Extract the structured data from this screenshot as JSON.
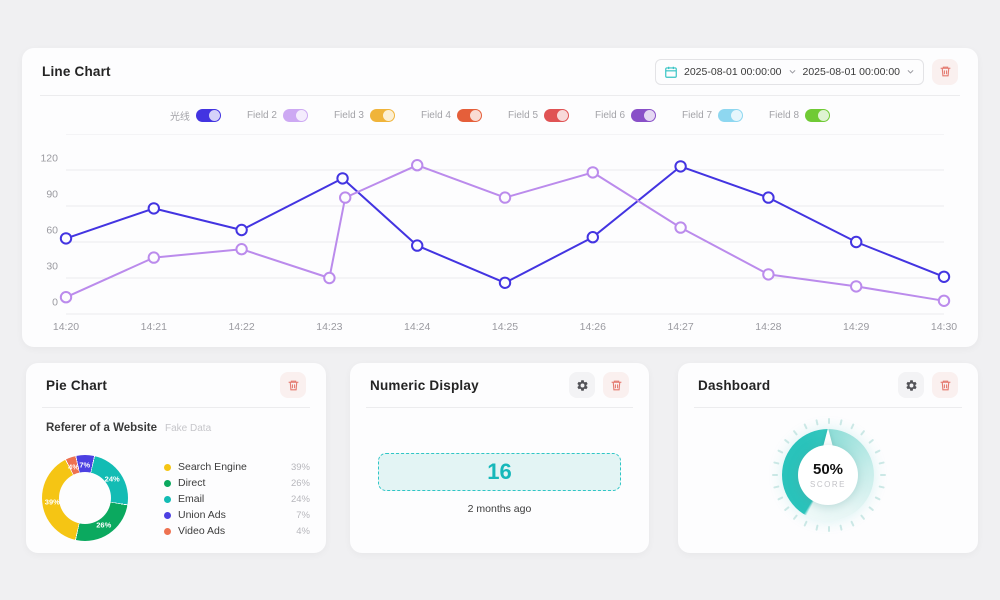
{
  "page": {
    "background": "#f0f0f2"
  },
  "line_chart_panel": {
    "title": "Line Chart",
    "date_range": {
      "start": "2025-08-01 00:00:00",
      "end": "2025-08-01 00:00:00"
    },
    "legend_toggles": [
      {
        "label": "光线",
        "color": "#4334e1",
        "on": true
      },
      {
        "label": "Field 2",
        "color": "#cda9f3",
        "on": true
      },
      {
        "label": "Field 3",
        "color": "#f0b43a",
        "on": true
      },
      {
        "label": "Field 4",
        "color": "#e55f3a",
        "on": true
      },
      {
        "label": "Field 5",
        "color": "#e05354",
        "on": true
      },
      {
        "label": "Field 6",
        "color": "#8950c8",
        "on": true
      },
      {
        "label": "Field 7",
        "color": "#8ed7f0",
        "on": true
      },
      {
        "label": "Field 8",
        "color": "#70ca35",
        "on": true
      }
    ]
  },
  "pie_panel": {
    "title": "Pie Chart",
    "subtitle": "Referer of a Website",
    "subtitle_note": "Fake Data"
  },
  "numeric_panel": {
    "title": "Numeric Display",
    "value": "16",
    "caption": "2 months ago",
    "accent": "#16b8ba"
  },
  "gauge_panel": {
    "title": "Dashboard",
    "value": "50%",
    "label": "SCORE",
    "accent": "#2cc2ba"
  },
  "chart_data": [
    {
      "type": "line",
      "title": "Line Chart",
      "x_labels": [
        "14:20",
        "14:21",
        "14:22",
        "14:23",
        "14:24",
        "14:25",
        "14:26",
        "14:27",
        "14:28",
        "14:29",
        "14:30"
      ],
      "y_ticks": [
        0,
        30,
        60,
        90,
        120
      ],
      "ylim": [
        0,
        150
      ],
      "grid": true,
      "legend_position": "top",
      "series": [
        {
          "name": "光线",
          "color": "#4334e1",
          "points": [
            {
              "x": 0,
              "y": 53
            },
            {
              "x": 1,
              "y": 78
            },
            {
              "x": 2,
              "y": 60
            },
            {
              "x": 3.15,
              "y": 103
            },
            {
              "x": 4,
              "y": 47
            },
            {
              "x": 5,
              "y": 16
            },
            {
              "x": 6,
              "y": 54
            },
            {
              "x": 7,
              "y": 113
            },
            {
              "x": 8,
              "y": 87
            },
            {
              "x": 9,
              "y": 50
            },
            {
              "x": 10,
              "y": 21
            }
          ]
        },
        {
          "name": "Field 2",
          "color": "#bb8bec",
          "points": [
            {
              "x": 0,
              "y": 4
            },
            {
              "x": 1,
              "y": 37
            },
            {
              "x": 2,
              "y": 44
            },
            {
              "x": 3,
              "y": 20
            },
            {
              "x": 3.18,
              "y": 87
            },
            {
              "x": 4,
              "y": 114
            },
            {
              "x": 5,
              "y": 87
            },
            {
              "x": 6,
              "y": 108
            },
            {
              "x": 7,
              "y": 62
            },
            {
              "x": 8,
              "y": 23
            },
            {
              "x": 9,
              "y": 13
            },
            {
              "x": 10,
              "y": 1
            }
          ]
        }
      ]
    },
    {
      "type": "pie",
      "title": "Referer of a Website",
      "donut": true,
      "unit": "%",
      "slices": [
        {
          "label": "Search Engine",
          "value": 39,
          "color": "#f5c514"
        },
        {
          "label": "Direct",
          "value": 26,
          "color": "#0ba95f"
        },
        {
          "label": "Email",
          "value": 24,
          "color": "#13bcb4"
        },
        {
          "label": "Union Ads",
          "value": 7,
          "color": "#4c40e2"
        },
        {
          "label": "Video Ads",
          "value": 4,
          "color": "#ee7251"
        }
      ],
      "draw_order": [
        3,
        2,
        1,
        0,
        4
      ],
      "start_angle_deg": -13,
      "legend_position": "right"
    },
    {
      "type": "gauge",
      "value": 50,
      "max": 100,
      "unit": "%",
      "label": "SCORE",
      "color": "#2cc2ba",
      "tick_count": 28
    }
  ]
}
